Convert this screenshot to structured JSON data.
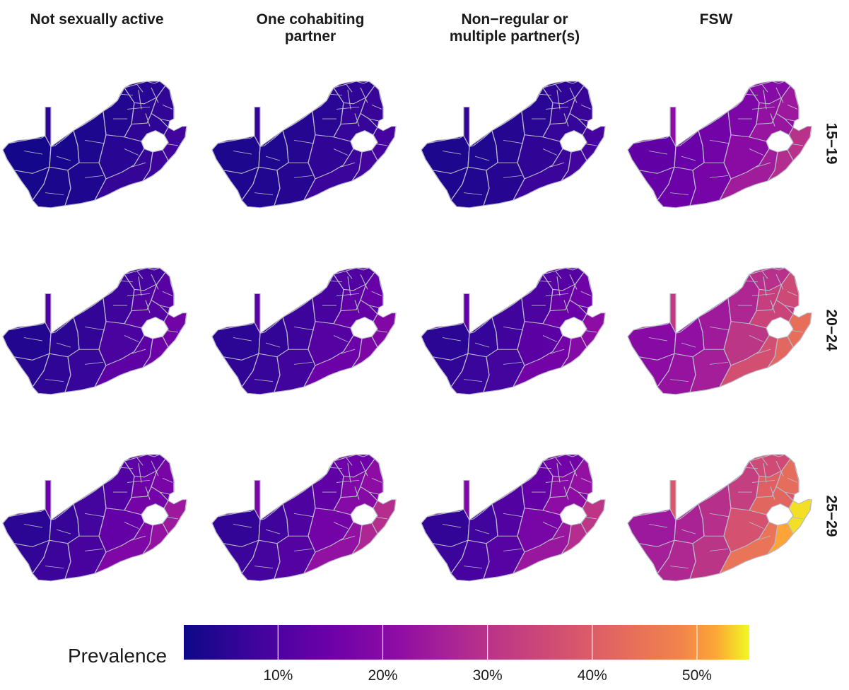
{
  "chart_data": {
    "type": "choropleth",
    "columns": [
      "Not sexually active",
      "One cohabiting\npartner",
      "Non−regular or\nmultiple partner(s)",
      "FSW"
    ],
    "rows": [
      "15−19",
      "20−24",
      "25−29"
    ],
    "panels": [
      [
        {
          "min": 0.02,
          "max": 0.08
        },
        {
          "min": 0.03,
          "max": 0.09
        },
        {
          "min": 0.03,
          "max": 0.09
        },
        {
          "min": 0.13,
          "max": 0.3
        }
      ],
      [
        {
          "min": 0.04,
          "max": 0.16
        },
        {
          "min": 0.05,
          "max": 0.19
        },
        {
          "min": 0.05,
          "max": 0.21
        },
        {
          "min": 0.2,
          "max": 0.44
        }
      ],
      [
        {
          "min": 0.05,
          "max": 0.24
        },
        {
          "min": 0.06,
          "max": 0.29
        },
        {
          "min": 0.06,
          "max": 0.31
        },
        {
          "min": 0.24,
          "max": 0.54
        }
      ]
    ],
    "colorbar": {
      "title": "Prevalence",
      "range": [
        0.01,
        0.55
      ],
      "ticks": [
        0.1,
        0.2,
        0.3,
        0.4,
        0.5
      ],
      "tick_labels": [
        "10%",
        "20%",
        "30%",
        "40%",
        "50%"
      ],
      "colormap": "plasma"
    },
    "boundary_color": "#b8b8c8"
  }
}
